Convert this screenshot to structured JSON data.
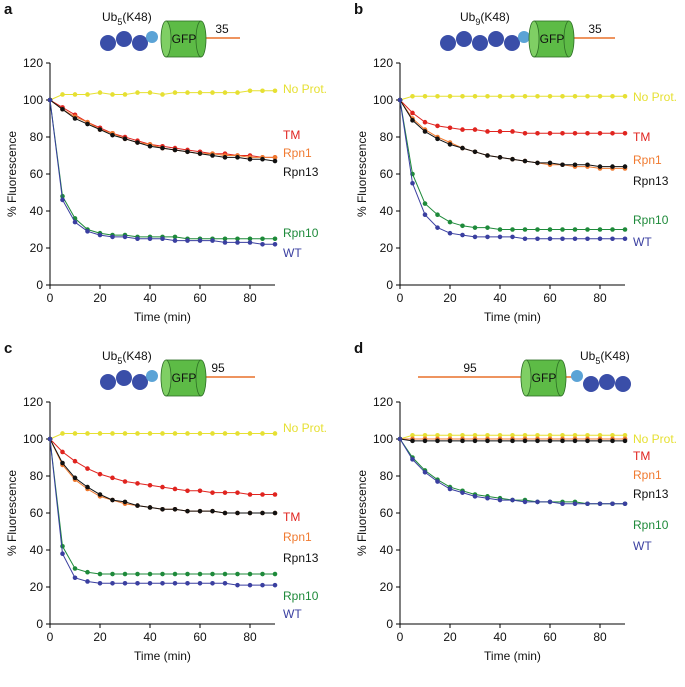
{
  "chart_data": [
    {
      "type": "scatter",
      "panel": "a",
      "construct_prefix": "Ub",
      "construct_subscript": "5",
      "construct_suffix": "(K48)",
      "gfp_label": "GFP",
      "tail_label": "35",
      "xlabel": "Time (min)",
      "ylabel": "% Fluorescence",
      "xlim": [
        0,
        90
      ],
      "ylim": [
        0,
        120
      ],
      "xticks": [
        0,
        20,
        40,
        60,
        80
      ],
      "yticks": [
        0,
        20,
        40,
        60,
        80,
        100,
        120
      ],
      "x": [
        0,
        5,
        10,
        15,
        20,
        25,
        30,
        35,
        40,
        45,
        50,
        55,
        60,
        65,
        70,
        75,
        80,
        85,
        90
      ],
      "series": [
        {
          "name": "No Prot.",
          "color": "#e6e033",
          "values": [
            100,
            103,
            103,
            103,
            104,
            103,
            103,
            104,
            104,
            103,
            104,
            104,
            104,
            104,
            104,
            104,
            105,
            105,
            105
          ]
        },
        {
          "name": "TM",
          "color": "#e0241f",
          "values": [
            100,
            96,
            92,
            88,
            85,
            82,
            80,
            78,
            76,
            75,
            74,
            73,
            72,
            71,
            71,
            70,
            70,
            69,
            69
          ]
        },
        {
          "name": "Rpn1",
          "color": "#f07a30",
          "values": [
            100,
            95,
            91,
            88,
            84,
            82,
            79,
            77,
            76,
            74,
            73,
            72,
            71,
            71,
            70,
            70,
            69,
            69,
            69
          ]
        },
        {
          "name": "Rpn13",
          "color": "#111111",
          "values": [
            100,
            95,
            90,
            87,
            84,
            81,
            79,
            77,
            75,
            74,
            73,
            72,
            71,
            70,
            69,
            69,
            68,
            68,
            67
          ]
        },
        {
          "name": "Rpn10",
          "color": "#1e8a3a",
          "values": [
            100,
            48,
            36,
            30,
            28,
            27,
            27,
            26,
            26,
            26,
            26,
            25,
            25,
            25,
            25,
            25,
            25,
            25,
            25
          ]
        },
        {
          "name": "WT",
          "color": "#3a3fa0",
          "values": [
            100,
            46,
            34,
            29,
            27,
            26,
            26,
            25,
            25,
            25,
            24,
            24,
            24,
            24,
            23,
            23,
            23,
            22,
            22
          ]
        }
      ]
    },
    {
      "type": "scatter",
      "panel": "b",
      "construct_prefix": "Ub",
      "construct_subscript": "9",
      "construct_suffix": "(K48)",
      "gfp_label": "GFP",
      "tail_label": "35",
      "xlabel": "Time (min)",
      "ylabel": "% Fluorescence",
      "xlim": [
        0,
        90
      ],
      "ylim": [
        0,
        120
      ],
      "xticks": [
        0,
        20,
        40,
        60,
        80
      ],
      "yticks": [
        0,
        20,
        40,
        60,
        80,
        100,
        120
      ],
      "x": [
        0,
        5,
        10,
        15,
        20,
        25,
        30,
        35,
        40,
        45,
        50,
        55,
        60,
        65,
        70,
        75,
        80,
        85,
        90
      ],
      "series": [
        {
          "name": "No Prot.",
          "color": "#e6e033",
          "values": [
            100,
            102,
            102,
            102,
            102,
            102,
            102,
            102,
            102,
            102,
            102,
            102,
            102,
            102,
            102,
            102,
            102,
            102,
            102
          ]
        },
        {
          "name": "TM",
          "color": "#e0241f",
          "values": [
            100,
            93,
            88,
            86,
            85,
            84,
            84,
            83,
            83,
            83,
            82,
            82,
            82,
            82,
            82,
            82,
            82,
            82,
            82
          ]
        },
        {
          "name": "Rpn1",
          "color": "#f07a30",
          "values": [
            100,
            90,
            84,
            80,
            77,
            74,
            72,
            70,
            69,
            68,
            67,
            66,
            65,
            65,
            64,
            64,
            63,
            63,
            63
          ]
        },
        {
          "name": "Rpn13",
          "color": "#111111",
          "values": [
            100,
            89,
            83,
            79,
            76,
            74,
            72,
            70,
            69,
            68,
            67,
            66,
            66,
            65,
            65,
            65,
            64,
            64,
            64
          ]
        },
        {
          "name": "Rpn10",
          "color": "#1e8a3a",
          "values": [
            100,
            60,
            44,
            38,
            34,
            32,
            31,
            31,
            30,
            30,
            30,
            30,
            30,
            30,
            30,
            30,
            30,
            30,
            30
          ]
        },
        {
          "name": "WT",
          "color": "#3a3fa0",
          "values": [
            100,
            55,
            38,
            31,
            28,
            27,
            26,
            26,
            26,
            26,
            25,
            25,
            25,
            25,
            25,
            25,
            25,
            25,
            25
          ]
        }
      ]
    },
    {
      "type": "scatter",
      "panel": "c",
      "construct_prefix": "Ub",
      "construct_subscript": "5",
      "construct_suffix": "(K48)",
      "gfp_label": "GFP",
      "tail_label": "95",
      "xlabel": "Time (min)",
      "ylabel": "% Fluorescence",
      "xlim": [
        0,
        90
      ],
      "ylim": [
        0,
        120
      ],
      "xticks": [
        0,
        20,
        40,
        60,
        80
      ],
      "yticks": [
        0,
        20,
        40,
        60,
        80,
        100,
        120
      ],
      "x": [
        0,
        5,
        10,
        15,
        20,
        25,
        30,
        35,
        40,
        45,
        50,
        55,
        60,
        65,
        70,
        75,
        80,
        85,
        90
      ],
      "series": [
        {
          "name": "No Prot.",
          "color": "#e6e033",
          "values": [
            100,
            103,
            103,
            103,
            103,
            103,
            103,
            103,
            103,
            103,
            103,
            103,
            103,
            103,
            103,
            103,
            103,
            103,
            103
          ]
        },
        {
          "name": "TM",
          "color": "#e0241f",
          "values": [
            100,
            93,
            88,
            84,
            81,
            79,
            77,
            76,
            75,
            74,
            73,
            72,
            72,
            71,
            71,
            71,
            70,
            70,
            70
          ]
        },
        {
          "name": "Rpn1",
          "color": "#f07a30",
          "values": [
            100,
            86,
            78,
            73,
            69,
            67,
            65,
            64,
            63,
            62,
            62,
            61,
            61,
            61,
            60,
            60,
            60,
            60,
            60
          ]
        },
        {
          "name": "Rpn13",
          "color": "#111111",
          "values": [
            100,
            87,
            79,
            74,
            70,
            67,
            66,
            64,
            63,
            62,
            62,
            61,
            61,
            61,
            60,
            60,
            60,
            60,
            60
          ]
        },
        {
          "name": "Rpn10",
          "color": "#1e8a3a",
          "values": [
            100,
            42,
            30,
            28,
            27,
            27,
            27,
            27,
            27,
            27,
            27,
            27,
            27,
            27,
            27,
            27,
            27,
            27,
            27
          ]
        },
        {
          "name": "WT",
          "color": "#3a3fa0",
          "values": [
            100,
            38,
            25,
            23,
            22,
            22,
            22,
            22,
            22,
            22,
            22,
            22,
            22,
            22,
            22,
            21,
            21,
            21,
            21
          ]
        }
      ]
    },
    {
      "type": "scatter",
      "panel": "d",
      "construct_prefix": "Ub",
      "construct_subscript": "5",
      "construct_suffix": "(K48)",
      "gfp_label": "GFP",
      "tail_label": "95",
      "xlabel": "Time (min)",
      "ylabel": "% Fluorescence",
      "xlim": [
        0,
        90
      ],
      "ylim": [
        0,
        120
      ],
      "xticks": [
        0,
        20,
        40,
        60,
        80
      ],
      "yticks": [
        0,
        20,
        40,
        60,
        80,
        100,
        120
      ],
      "x": [
        0,
        5,
        10,
        15,
        20,
        25,
        30,
        35,
        40,
        45,
        50,
        55,
        60,
        65,
        70,
        75,
        80,
        85,
        90
      ],
      "series": [
        {
          "name": "No Prot.",
          "color": "#e6e033",
          "values": [
            100,
            102,
            102,
            102,
            102,
            102,
            102,
            102,
            102,
            102,
            102,
            102,
            102,
            102,
            102,
            102,
            102,
            102,
            102
          ]
        },
        {
          "name": "TM",
          "color": "#e0241f",
          "values": [
            100,
            100,
            100,
            100,
            100,
            100,
            100,
            100,
            100,
            100,
            100,
            100,
            100,
            100,
            100,
            100,
            100,
            100,
            100
          ]
        },
        {
          "name": "Rpn1",
          "color": "#f07a30",
          "values": [
            100,
            100,
            100,
            100,
            100,
            100,
            100,
            100,
            100,
            100,
            100,
            100,
            100,
            100,
            100,
            100,
            100,
            100,
            100
          ]
        },
        {
          "name": "Rpn13",
          "color": "#111111",
          "values": [
            100,
            99,
            99,
            99,
            99,
            99,
            99,
            99,
            99,
            99,
            99,
            99,
            99,
            99,
            99,
            99,
            99,
            99,
            99
          ]
        },
        {
          "name": "Rpn10",
          "color": "#1e8a3a",
          "values": [
            100,
            90,
            83,
            78,
            74,
            72,
            70,
            69,
            68,
            67,
            67,
            66,
            66,
            66,
            66,
            65,
            65,
            65,
            65
          ]
        },
        {
          "name": "WT",
          "color": "#3a3fa0",
          "values": [
            100,
            89,
            82,
            77,
            73,
            71,
            69,
            68,
            67,
            67,
            66,
            66,
            66,
            65,
            65,
            65,
            65,
            65,
            65
          ]
        }
      ]
    }
  ]
}
